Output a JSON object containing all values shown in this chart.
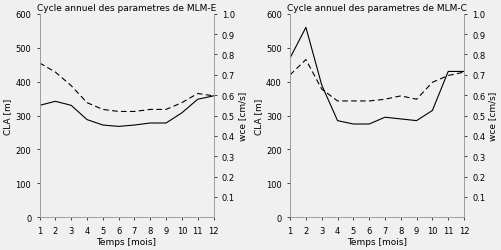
{
  "left_title": "Cycle annuel des parametres de MLM-E",
  "right_title": "Cycle annuel des parametres de MLM-C",
  "xlabel": "Temps [mois]",
  "ylabel_left": "CLA [m]",
  "ylabel_right": "wce [cm/s]",
  "months": [
    1,
    2,
    3,
    4,
    5,
    6,
    7,
    8,
    9,
    10,
    11,
    12
  ],
  "left_solid": [
    330,
    342,
    330,
    288,
    272,
    268,
    272,
    278,
    278,
    308,
    348,
    358
  ],
  "left_dashed": [
    455,
    428,
    388,
    338,
    318,
    312,
    312,
    318,
    318,
    338,
    365,
    358
  ],
  "right_solid": [
    470,
    560,
    390,
    285,
    275,
    275,
    295,
    290,
    285,
    315,
    430,
    430
  ],
  "right_dashed": [
    420,
    465,
    378,
    343,
    343,
    343,
    348,
    358,
    348,
    398,
    418,
    428
  ],
  "left_ylim": [
    0,
    600
  ],
  "right_ylim": [
    0,
    1
  ],
  "line_color": "#000000",
  "bg_color": "#f0f0f0",
  "plot_bg": "#f0f0f0",
  "title_fontsize": 6.5,
  "label_fontsize": 6.5,
  "tick_fontsize": 6.0
}
